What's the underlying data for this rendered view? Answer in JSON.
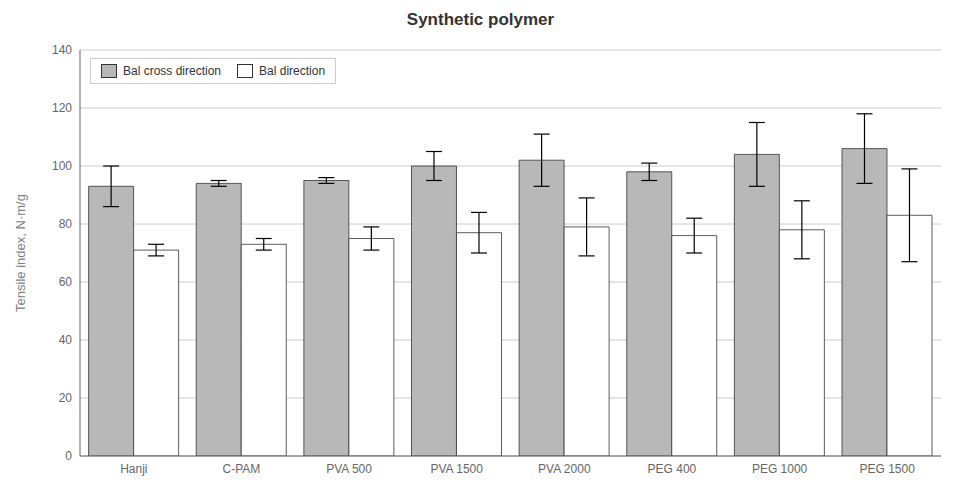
{
  "chart_data": {
    "type": "bar",
    "title": "Synthetic polymer",
    "ylabel": "Tensile index, N·m/g",
    "categories": [
      "Hanji",
      "C-PAM",
      "PVA 500",
      "PVA 1500",
      "PVA 2000",
      "PEG 400",
      "PEG 1000",
      "PEG 1500"
    ],
    "series": [
      {
        "name": "Bal cross direction",
        "color": "#b8b8b8",
        "values": [
          93,
          94,
          95,
          100,
          102,
          98,
          104,
          106
        ],
        "errors": [
          7,
          1,
          1,
          5,
          9,
          3,
          11,
          12
        ]
      },
      {
        "name": "Bal direction",
        "color": "#ffffff",
        "values": [
          71,
          73,
          75,
          77,
          79,
          76,
          78,
          83
        ],
        "errors": [
          2,
          2,
          4,
          7,
          10,
          6,
          10,
          16
        ]
      }
    ],
    "ylim": [
      0,
      140
    ],
    "yticks": [
      0,
      20,
      40,
      60,
      80,
      100,
      120,
      140
    ],
    "grid": true,
    "legend": "upper left"
  }
}
